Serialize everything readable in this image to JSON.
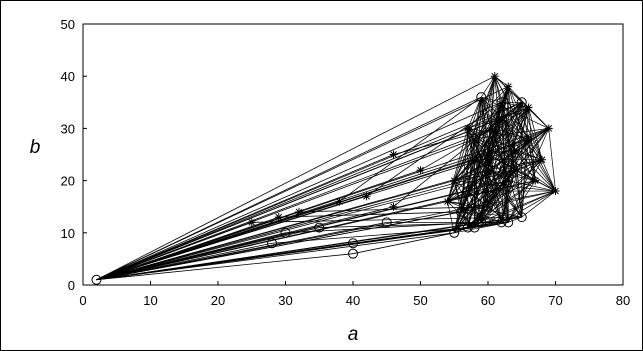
{
  "chart_data": {
    "type": "line",
    "title": "",
    "xlabel": "a",
    "ylabel": "b",
    "xlim": [
      0,
      80
    ],
    "ylim": [
      0,
      50
    ],
    "x_ticks": [
      0,
      10,
      20,
      30,
      40,
      50,
      60,
      70,
      80
    ],
    "y_ticks": [
      0,
      10,
      20,
      30,
      40,
      50
    ],
    "grid": false,
    "line_color": "#000000",
    "origin_point": {
      "x": 2,
      "y": 1
    },
    "series": [
      {
        "marker": "o",
        "points": [
          {
            "x": 40,
            "y": 6
          },
          {
            "x": 40,
            "y": 8
          },
          {
            "x": 55,
            "y": 10
          },
          {
            "x": 57,
            "y": 11
          },
          {
            "x": 58,
            "y": 11
          },
          {
            "x": 59,
            "y": 12
          },
          {
            "x": 62,
            "y": 12
          },
          {
            "x": 63,
            "y": 12
          },
          {
            "x": 65,
            "y": 13
          },
          {
            "x": 56,
            "y": 14
          },
          {
            "x": 60,
            "y": 15
          },
          {
            "x": 59,
            "y": 36
          },
          {
            "x": 62,
            "y": 35
          },
          {
            "x": 65,
            "y": 35
          },
          {
            "x": 61,
            "y": 30
          },
          {
            "x": 58,
            "y": 28
          },
          {
            "x": 63,
            "y": 20
          },
          {
            "x": 60,
            "y": 22
          },
          {
            "x": 57,
            "y": 18
          },
          {
            "x": 64,
            "y": 26
          },
          {
            "x": 28,
            "y": 8
          },
          {
            "x": 30,
            "y": 10
          },
          {
            "x": 35,
            "y": 11
          },
          {
            "x": 45,
            "y": 12
          },
          {
            "x": 2,
            "y": 1
          }
        ]
      },
      {
        "marker": "*",
        "points": [
          {
            "x": 25,
            "y": 12
          },
          {
            "x": 29,
            "y": 13
          },
          {
            "x": 32,
            "y": 14
          },
          {
            "x": 38,
            "y": 16
          },
          {
            "x": 42,
            "y": 17
          },
          {
            "x": 46,
            "y": 15
          },
          {
            "x": 46,
            "y": 25
          },
          {
            "x": 50,
            "y": 22
          },
          {
            "x": 61,
            "y": 40
          },
          {
            "x": 63,
            "y": 38
          },
          {
            "x": 62,
            "y": 32
          },
          {
            "x": 66,
            "y": 28
          },
          {
            "x": 68,
            "y": 24
          },
          {
            "x": 70,
            "y": 18
          },
          {
            "x": 67,
            "y": 20
          },
          {
            "x": 64,
            "y": 22
          },
          {
            "x": 60,
            "y": 25
          },
          {
            "x": 58,
            "y": 24
          },
          {
            "x": 55,
            "y": 20
          },
          {
            "x": 54,
            "y": 16
          },
          {
            "x": 69,
            "y": 30
          },
          {
            "x": 66,
            "y": 34
          },
          {
            "x": 57,
            "y": 30
          }
        ]
      }
    ]
  }
}
